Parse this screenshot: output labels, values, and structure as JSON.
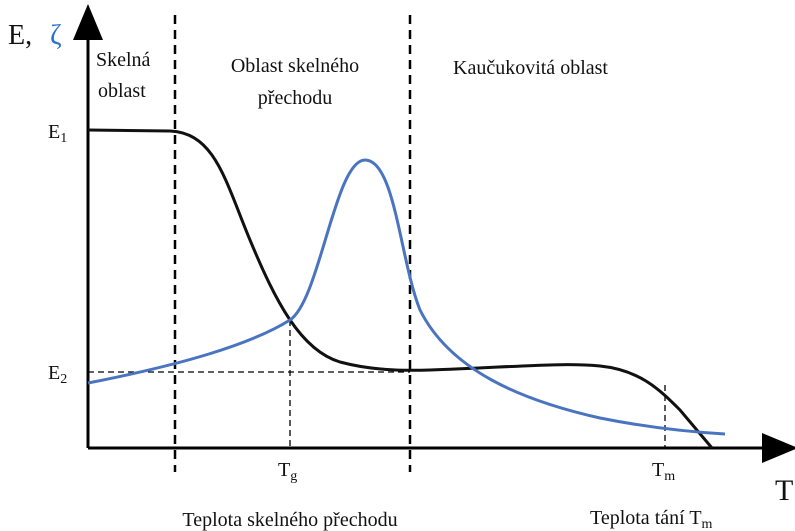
{
  "axes": {
    "y_label": "E,",
    "y_label_zeta": "ζ",
    "x_label": "T"
  },
  "regions": {
    "glassy": [
      "Skelná",
      "oblast"
    ],
    "transition": [
      "Oblast skelného",
      "přechodu"
    ],
    "rubbery": "Kaučukovitá oblast"
  },
  "levels": {
    "E1": {
      "text": "E",
      "sub": "1"
    },
    "E2": {
      "text": "E",
      "sub": "2"
    }
  },
  "temperatures": {
    "Tg": {
      "text": "T",
      "sub": "g"
    },
    "Tm": {
      "text": "T",
      "sub": "m"
    }
  },
  "captions": {
    "glass_transition": "Teplota skelného přechodu",
    "melting": {
      "text": "Teplota tání T",
      "sub": "m"
    }
  }
}
